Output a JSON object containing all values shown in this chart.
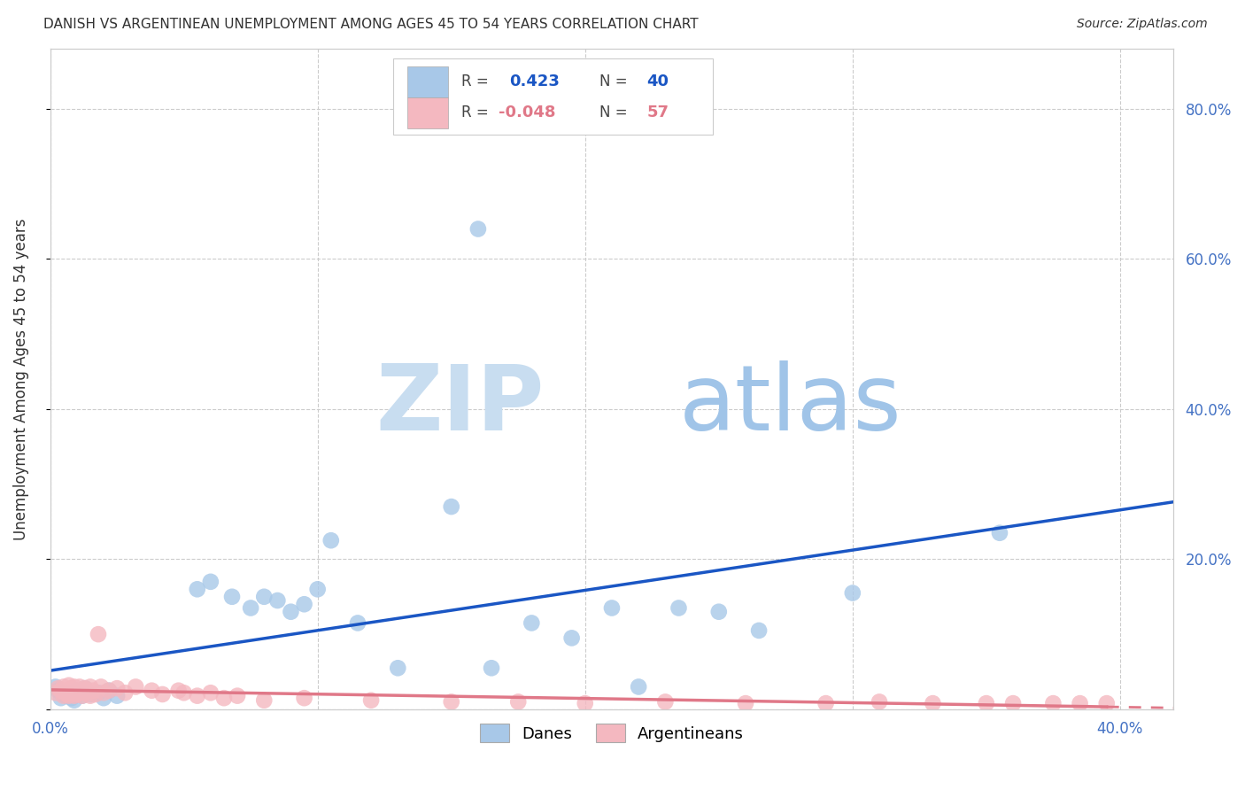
{
  "title": "DANISH VS ARGENTINEAN UNEMPLOYMENT AMONG AGES 45 TO 54 YEARS CORRELATION CHART",
  "source": "Source: ZipAtlas.com",
  "ylabel": "Unemployment Among Ages 45 to 54 years",
  "xlim": [
    0.0,
    0.42
  ],
  "ylim": [
    0.0,
    0.88
  ],
  "x_ticks": [
    0.0,
    0.1,
    0.2,
    0.3,
    0.4
  ],
  "y_ticks": [
    0.0,
    0.2,
    0.4,
    0.6,
    0.8
  ],
  "x_tick_labels": [
    "0.0%",
    "",
    "",
    "",
    "40.0%"
  ],
  "y_tick_labels": [
    "",
    "20.0%",
    "40.0%",
    "60.0%",
    "80.0%"
  ],
  "danes_R": 0.423,
  "danes_N": 40,
  "argentineans_R": -0.048,
  "argentineans_N": 57,
  "danes_color": "#a8c8e8",
  "argentineans_color": "#f4b8c0",
  "danes_line_color": "#1a56c4",
  "argentineans_line_color": "#e07888",
  "axis_tick_color": "#4472c4",
  "background_color": "#ffffff",
  "grid_color": "#cccccc",
  "title_color": "#333333",
  "danes_x": [
    0.002,
    0.003,
    0.004,
    0.005,
    0.006,
    0.007,
    0.008,
    0.009,
    0.01,
    0.012,
    0.013,
    0.015,
    0.018,
    0.02,
    0.022,
    0.025,
    0.055,
    0.06,
    0.068,
    0.075,
    0.08,
    0.085,
    0.09,
    0.095,
    0.1,
    0.105,
    0.115,
    0.13,
    0.15,
    0.16,
    0.165,
    0.18,
    0.195,
    0.21,
    0.22,
    0.235,
    0.25,
    0.265,
    0.3,
    0.355
  ],
  "danes_y": [
    0.03,
    0.025,
    0.015,
    0.02,
    0.018,
    0.022,
    0.015,
    0.012,
    0.025,
    0.018,
    0.028,
    0.02,
    0.022,
    0.015,
    0.025,
    0.018,
    0.16,
    0.17,
    0.15,
    0.135,
    0.15,
    0.145,
    0.13,
    0.14,
    0.16,
    0.225,
    0.115,
    0.055,
    0.27,
    0.64,
    0.055,
    0.115,
    0.095,
    0.135,
    0.03,
    0.135,
    0.13,
    0.105,
    0.155,
    0.235
  ],
  "argentineans_x": [
    0.002,
    0.003,
    0.004,
    0.005,
    0.005,
    0.006,
    0.006,
    0.007,
    0.007,
    0.008,
    0.008,
    0.009,
    0.009,
    0.01,
    0.01,
    0.011,
    0.011,
    0.012,
    0.012,
    0.013,
    0.013,
    0.014,
    0.015,
    0.015,
    0.016,
    0.017,
    0.018,
    0.019,
    0.02,
    0.022,
    0.025,
    0.028,
    0.032,
    0.038,
    0.042,
    0.048,
    0.05,
    0.055,
    0.06,
    0.065,
    0.07,
    0.08,
    0.095,
    0.12,
    0.15,
    0.175,
    0.2,
    0.23,
    0.26,
    0.29,
    0.31,
    0.33,
    0.35,
    0.36,
    0.375,
    0.385,
    0.395
  ],
  "argentineans_y": [
    0.022,
    0.028,
    0.025,
    0.03,
    0.018,
    0.025,
    0.02,
    0.032,
    0.018,
    0.028,
    0.022,
    0.03,
    0.018,
    0.025,
    0.02,
    0.03,
    0.022,
    0.025,
    0.018,
    0.028,
    0.022,
    0.025,
    0.03,
    0.018,
    0.025,
    0.02,
    0.1,
    0.03,
    0.022,
    0.025,
    0.028,
    0.022,
    0.03,
    0.025,
    0.02,
    0.025,
    0.022,
    0.018,
    0.022,
    0.015,
    0.018,
    0.012,
    0.015,
    0.012,
    0.01,
    0.01,
    0.008,
    0.01,
    0.008,
    0.008,
    0.01,
    0.008,
    0.008,
    0.008,
    0.008,
    0.008,
    0.008
  ],
  "danes_line_x_start": 0.0,
  "danes_line_x_end": 0.42,
  "arg_line_solid_end": 0.395,
  "arg_line_dashed_end": 0.42
}
